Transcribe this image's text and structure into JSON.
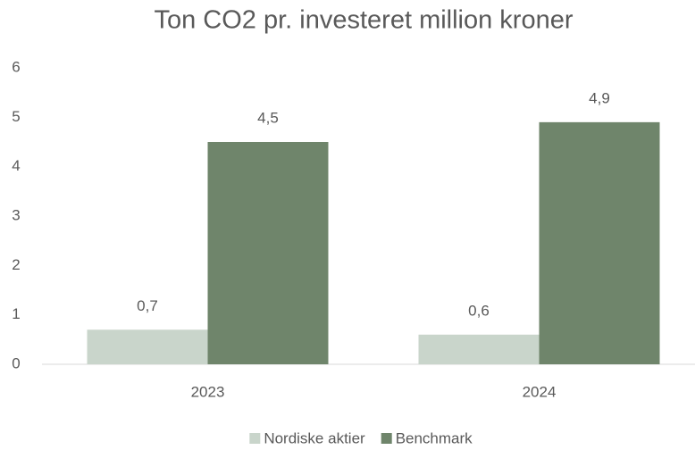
{
  "chart_data": {
    "type": "bar",
    "title": "Ton CO2 pr. investeret million kroner",
    "categories": [
      "2023",
      "2024"
    ],
    "series": [
      {
        "name": "Nordiske aktier",
        "color": "#c9d5cb",
        "values": [
          0.7,
          0.6
        ],
        "value_labels": [
          "0,7",
          "0,6"
        ]
      },
      {
        "name": "Benchmark",
        "color": "#6f856b",
        "values": [
          4.5,
          4.9
        ],
        "value_labels": [
          "4,5",
          "4,9"
        ]
      }
    ],
    "ylim": [
      0,
      6
    ],
    "yticks": [
      0,
      1,
      2,
      3,
      4,
      5,
      6
    ],
    "grid": false,
    "legend": "bottom"
  }
}
